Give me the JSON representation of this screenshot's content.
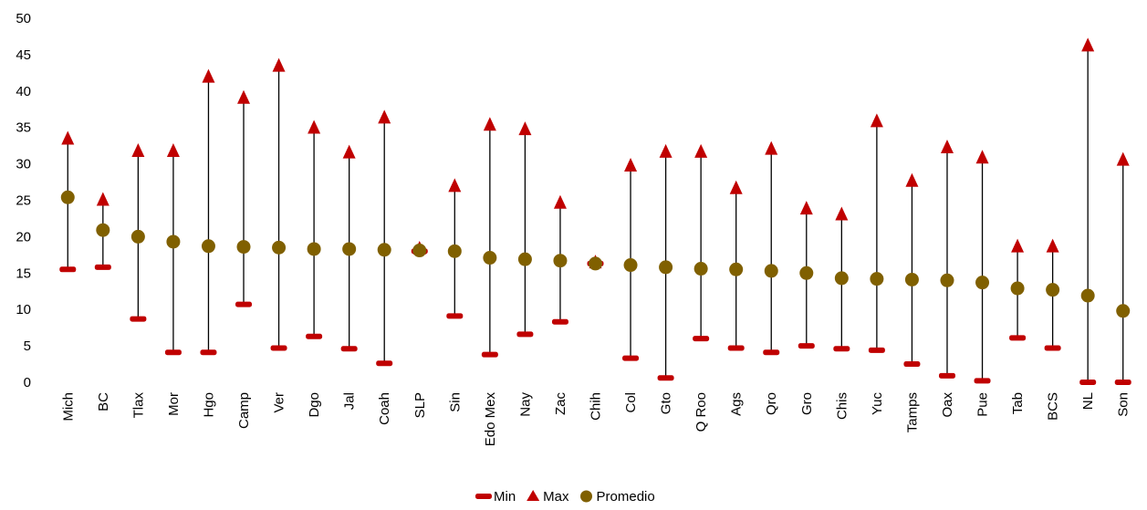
{
  "chart_data": {
    "type": "scatter",
    "subtype": "high-low-average",
    "categories": [
      "Mich",
      "BC",
      "Tlax",
      "Mor",
      "Hgo",
      "Camp",
      "Ver",
      "Dgo",
      "Jal",
      "Coah",
      "SLP",
      "Sin",
      "Edo Mex",
      "Nay",
      "Zac",
      "Chih",
      "Col",
      "Gto",
      "Q Roo",
      "Ags",
      "Qro",
      "Gro",
      "Chis",
      "Yuc",
      "Tamps",
      "Oax",
      "Pue",
      "Tab",
      "BCS",
      "NL",
      "Son"
    ],
    "series": [
      {
        "name": "Min",
        "marker": "dash",
        "color": "#c00000",
        "values": [
          15.5,
          15.8,
          8.7,
          4.1,
          4.1,
          10.7,
          4.7,
          6.3,
          4.6,
          2.6,
          18.0,
          9.1,
          3.8,
          6.6,
          8.3,
          16.3,
          3.3,
          0.6,
          6.0,
          4.7,
          4.1,
          5.0,
          4.6,
          4.4,
          2.5,
          0.9,
          0.2,
          6.1,
          4.7,
          0.0,
          0.0
        ]
      },
      {
        "name": "Max",
        "marker": "triangle",
        "color": "#c00000",
        "values": [
          33.4,
          25.0,
          31.7,
          31.7,
          41.9,
          39.0,
          43.4,
          34.9,
          31.5,
          36.3,
          18.3,
          26.9,
          35.3,
          34.7,
          24.6,
          16.4,
          29.7,
          31.6,
          31.6,
          26.6,
          32.0,
          23.8,
          23.0,
          35.8,
          27.6,
          32.2,
          30.8,
          18.6,
          18.6,
          46.2,
          30.5
        ]
      },
      {
        "name": "Promedio",
        "marker": "circle",
        "color": "#806000",
        "values": [
          25.4,
          20.9,
          20.0,
          19.3,
          18.7,
          18.6,
          18.5,
          18.3,
          18.3,
          18.2,
          18.1,
          18.0,
          17.1,
          16.9,
          16.7,
          16.3,
          16.1,
          15.8,
          15.6,
          15.5,
          15.3,
          15.0,
          14.3,
          14.2,
          14.1,
          14.0,
          13.7,
          12.9,
          12.7,
          11.9,
          9.8
        ]
      }
    ],
    "ylim": [
      0,
      50
    ],
    "yticks": [
      "0",
      "5",
      "10",
      "15",
      "20",
      "25",
      "30",
      "35",
      "40",
      "45",
      "50"
    ],
    "grid": false,
    "legend": "bottom-center",
    "connector_color": "#000000"
  }
}
